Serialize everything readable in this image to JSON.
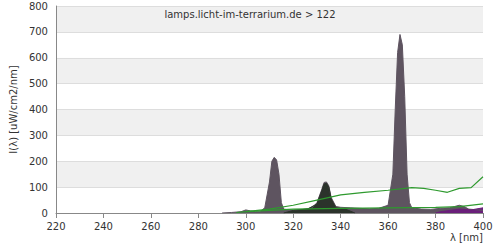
{
  "chart_data": {
    "type": "line",
    "title": "lamps.licht-im-terrarium.de > 122",
    "x_label": "λ [nm]",
    "y_label": "I(λ) [uW/cm2/nm]",
    "xlim": [
      220,
      400
    ],
    "xticks": [
      220,
      240,
      260,
      280,
      300,
      320,
      340,
      360,
      380,
      400
    ],
    "ylim": [
      0,
      800
    ],
    "yticks": [
      0,
      100,
      200,
      300,
      400,
      500,
      600,
      700,
      800
    ],
    "grid": true,
    "series": [
      {
        "type": "area",
        "color": "#5e5460",
        "x": [
          290,
          294,
          298,
          300,
          302,
          304,
          306,
          308,
          310,
          311,
          312,
          313,
          314,
          315,
          316,
          318,
          320,
          324,
          328,
          330,
          332,
          333,
          334,
          335,
          336,
          338,
          340,
          344,
          348,
          352,
          356,
          360,
          362,
          363,
          364,
          365,
          366,
          367,
          368,
          369,
          370,
          374,
          378,
          382,
          386,
          388,
          390,
          392,
          394,
          398,
          400
        ],
        "values": [
          0,
          2,
          5,
          12,
          8,
          5,
          5,
          20,
          120,
          200,
          215,
          205,
          150,
          40,
          15,
          12,
          12,
          14,
          20,
          40,
          90,
          118,
          120,
          105,
          60,
          25,
          22,
          20,
          18,
          16,
          18,
          30,
          150,
          400,
          620,
          690,
          650,
          450,
          150,
          40,
          20,
          15,
          14,
          18,
          20,
          25,
          30,
          25,
          15,
          12,
          10
        ]
      },
      {
        "type": "area",
        "color": "#2b332b",
        "x": [
          316,
          320,
          326,
          330,
          332,
          333,
          334,
          335,
          336,
          338,
          342,
          346
        ],
        "values": [
          0,
          10,
          15,
          35,
          85,
          112,
          115,
          100,
          55,
          20,
          15,
          0
        ]
      },
      {
        "type": "area",
        "color": "#6a1f7a",
        "x": [
          380,
          382,
          386,
          390,
          395,
          400
        ],
        "values": [
          0,
          5,
          10,
          15,
          12,
          20
        ]
      },
      {
        "type": "line",
        "color": "#2e9a2e",
        "x": [
          296,
          300,
          310,
          320,
          330,
          340,
          350,
          360,
          370,
          375,
          380,
          385,
          390,
          395,
          400
        ],
        "values": [
          2,
          5,
          15,
          30,
          50,
          70,
          80,
          88,
          98,
          95,
          88,
          80,
          95,
          98,
          140
        ]
      },
      {
        "type": "line",
        "color": "#2e9a2e",
        "x": [
          300,
          320,
          340,
          360,
          380,
          390,
          400
        ],
        "values": [
          5,
          15,
          18,
          20,
          22,
          25,
          35
        ]
      }
    ]
  }
}
